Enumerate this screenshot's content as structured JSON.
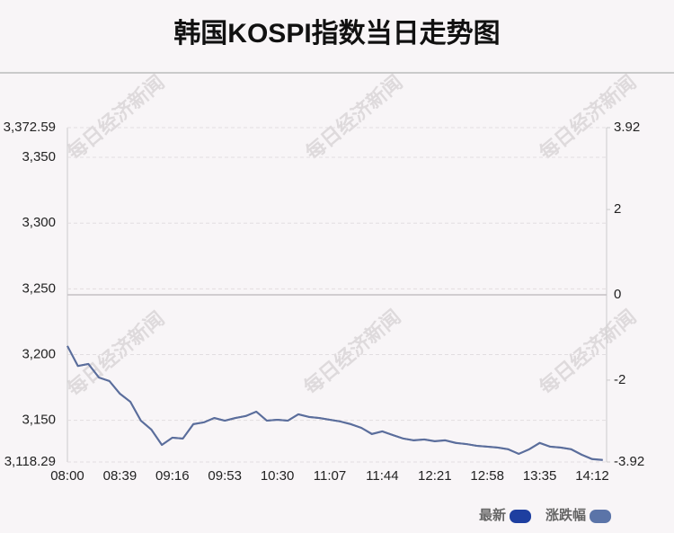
{
  "chart_data": {
    "type": "line",
    "title": "韩国KOSPI指数当日走势图",
    "watermark": "每日经济新闻",
    "categories": [
      "08:00",
      null,
      null,
      null,
      null,
      "08:39",
      null,
      null,
      null,
      null,
      "09:16",
      null,
      null,
      null,
      null,
      "09:53",
      null,
      null,
      null,
      null,
      "10:30",
      null,
      null,
      null,
      null,
      "11:07",
      null,
      null,
      null,
      null,
      "11:44",
      null,
      null,
      null,
      null,
      "12:21",
      null,
      null,
      null,
      null,
      "12:58",
      null,
      null,
      null,
      null,
      "13:35",
      null,
      null,
      null,
      null,
      "14:12",
      null
    ],
    "series": [
      {
        "name": "最新",
        "color": "#1e3fa0",
        "line_color": "#5b6e9c",
        "values": [
          3206.5,
          3191.4,
          3192.8,
          3182.6,
          3179.8,
          3170.3,
          3164.1,
          3149.7,
          3142.9,
          3131.3,
          3136.8,
          3136.1,
          3147.0,
          3148.4,
          3151.8,
          3149.7,
          3151.8,
          3153.2,
          3156.6,
          3149.7,
          3150.4,
          3149.7,
          3154.5,
          3152.5,
          3151.8,
          3150.4,
          3149.1,
          3147.0,
          3144.3,
          3139.5,
          3141.5,
          3138.8,
          3136.1,
          3134.7,
          3135.4,
          3134.0,
          3134.7,
          3132.7,
          3132.0,
          3130.6,
          3129.9,
          3129.2,
          3127.9,
          3124.5,
          3127.9,
          3132.7,
          3129.9,
          3129.2,
          3127.9,
          3123.8,
          3120.4,
          3119.7
        ]
      },
      {
        "name": "涨跌幅",
        "color": "#5b74a8",
        "line_color": "#5b6e9c",
        "axis": "y2",
        "values": [
          -1.2,
          -1.67,
          -1.62,
          -1.94,
          -2.02,
          -2.32,
          -2.51,
          -2.95,
          -3.16,
          -3.52,
          -3.35,
          -3.37,
          -3.03,
          -2.99,
          -2.89,
          -2.95,
          -2.89,
          -2.84,
          -2.74,
          -2.95,
          -2.93,
          -2.95,
          -2.8,
          -2.86,
          -2.89,
          -2.93,
          -2.97,
          -3.03,
          -3.12,
          -3.26,
          -3.2,
          -3.29,
          -3.37,
          -3.41,
          -3.39,
          -3.43,
          -3.41,
          -3.47,
          -3.5,
          -3.54,
          -3.56,
          -3.58,
          -3.62,
          -3.73,
          -3.62,
          -3.47,
          -3.56,
          -3.58,
          -3.62,
          -3.75,
          -3.85,
          -3.87
        ]
      }
    ],
    "ylim": [
      3118.29,
      3372.59
    ],
    "yticks": [
      {
        "value": 3118.29,
        "label": "3,118.29"
      },
      {
        "value": 3150,
        "label": "3,150"
      },
      {
        "value": 3200,
        "label": "3,200"
      },
      {
        "value": 3250,
        "label": "3,250"
      },
      {
        "value": 3300,
        "label": "3,300"
      },
      {
        "value": 3350,
        "label": "3,350"
      },
      {
        "value": 3372.59,
        "label": "3,372.59"
      }
    ],
    "y2lim": [
      -3.92,
      3.92
    ],
    "y2ticks": [
      -3.92,
      -2,
      0,
      2,
      3.92
    ],
    "grid": true,
    "legend": "bottom-right"
  }
}
